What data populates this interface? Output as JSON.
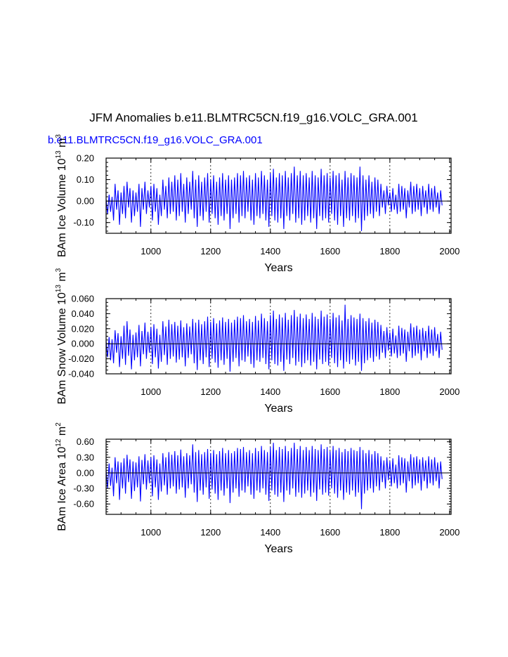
{
  "page": {
    "title": "JFM Anomalies b.e11.BLMTRC5CN.f19_g16.VOLC_GRA.001",
    "run_label": "b.e11.BLMTRC5CN.f19_g16.VOLC_GRA.001",
    "colors": {
      "series": "#0000ff",
      "run_label": "#0000ff",
      "axes": "#000000",
      "background": "#ffffff"
    }
  },
  "chart_data": [
    {
      "id": "ice-volume",
      "type": "line",
      "title": "",
      "xlabel": "Years",
      "ylabel": "BAm Ice Volume 10",
      "ylabel_exp": "13",
      "ylabel_unit": "m",
      "ylabel_unit_exp": "3",
      "xlim": [
        850,
        2005
      ],
      "ylim": [
        -0.15,
        0.2
      ],
      "xticks": [
        1000,
        1200,
        1400,
        1600,
        1800,
        2000
      ],
      "yticks": [
        -0.1,
        0.0,
        0.1,
        0.2
      ],
      "ytick_labels": [
        "-0.10",
        "0.00",
        "0.10",
        "0.20"
      ],
      "y_minor_step": 0.02,
      "x_minor_step": 50,
      "vgrid": [
        1000,
        1200,
        1400,
        1600,
        1800
      ],
      "zero_line": true,
      "series": [
        {
          "name": "BAm Ice Volume",
          "color": "#0000ff",
          "x_start": 850,
          "step": 5,
          "values": [
            0.01,
            -0.06,
            0.03,
            -0.05,
            0.02,
            -0.09,
            0.08,
            -0.04,
            0.05,
            -0.11,
            0.04,
            -0.06,
            0.07,
            -0.08,
            0.09,
            -0.03,
            0.06,
            -0.1,
            0.05,
            -0.07,
            0.04,
            -0.05,
            0.08,
            -0.12,
            0.06,
            -0.04,
            0.09,
            -0.06,
            0.05,
            -0.03,
            0.07,
            -0.09,
            0.08,
            -0.05,
            0.06,
            -0.11,
            0.03,
            -0.07,
            0.1,
            -0.04,
            0.07,
            -0.08,
            0.11,
            -0.06,
            0.09,
            -0.05,
            0.12,
            -0.09,
            0.1,
            -0.07,
            0.13,
            -0.05,
            0.08,
            -0.1,
            0.11,
            -0.06,
            0.09,
            -0.04,
            0.14,
            -0.08,
            0.1,
            -0.12,
            0.12,
            -0.07,
            0.09,
            -0.09,
            0.11,
            -0.05,
            0.13,
            -0.1,
            0.1,
            -0.06,
            0.12,
            -0.08,
            0.09,
            -0.11,
            0.11,
            -0.07,
            0.13,
            -0.09,
            0.1,
            -0.06,
            0.12,
            -0.13,
            0.1,
            -0.08,
            0.11,
            -0.06,
            0.13,
            -0.1,
            0.12,
            -0.07,
            0.14,
            -0.08,
            0.11,
            -0.05,
            0.12,
            -0.09,
            0.1,
            -0.11,
            0.13,
            -0.07,
            0.11,
            -0.08,
            0.14,
            -0.06,
            0.12,
            -0.09,
            0.1,
            -0.12,
            0.13,
            -0.07,
            0.15,
            -0.09,
            0.11,
            -0.1,
            0.13,
            -0.08,
            0.12,
            -0.13,
            0.14,
            -0.07,
            0.11,
            -0.09,
            0.13,
            -0.06,
            0.16,
            -0.1,
            0.12,
            -0.08,
            0.14,
            -0.11,
            0.12,
            -0.09,
            0.13,
            -0.07,
            0.11,
            -0.1,
            0.14,
            -0.08,
            0.12,
            -0.13,
            0.11,
            -0.07,
            0.15,
            -0.09,
            0.12,
            -0.08,
            0.13,
            -0.1,
            0.11,
            -0.06,
            0.14,
            -0.09,
            0.12,
            -0.11,
            0.13,
            -0.07,
            0.1,
            -0.12,
            0.14,
            -0.08,
            0.11,
            -0.09,
            0.13,
            -0.07,
            0.12,
            -0.1,
            0.11,
            -0.08,
            0.16,
            -0.14,
            0.12,
            -0.09,
            0.1,
            -0.07,
            0.12,
            -0.06,
            0.09,
            -0.08,
            0.11,
            -0.05,
            0.1,
            -0.07,
            0.08,
            -0.03,
            0.05,
            -0.06,
            0.07,
            -0.02,
            0.04,
            -0.05,
            0.06,
            -0.04,
            0.03,
            -0.06,
            0.08,
            -0.05,
            0.07,
            -0.04,
            0.06,
            -0.08,
            0.05,
            -0.03,
            0.09,
            -0.06,
            0.07,
            -0.05,
            0.08,
            -0.04,
            0.06,
            -0.07,
            0.07,
            -0.03,
            0.05,
            -0.06,
            0.08,
            -0.04,
            0.06,
            -0.05,
            0.07,
            -0.03,
            0.04,
            -0.06,
            0.05,
            -0.02
          ]
        }
      ]
    },
    {
      "id": "snow-volume",
      "type": "line",
      "title": "",
      "xlabel": "Years",
      "ylabel": "BAm Snow Volume 10",
      "ylabel_exp": "13",
      "ylabel_unit": "m",
      "ylabel_unit_exp": "3",
      "xlim": [
        850,
        2005
      ],
      "ylim": [
        -0.04,
        0.06
      ],
      "xticks": [
        1000,
        1200,
        1400,
        1600,
        1800,
        2000
      ],
      "yticks": [
        -0.04,
        -0.02,
        0.0,
        0.02,
        0.04,
        0.06
      ],
      "ytick_labels": [
        "-0.040",
        "-0.020",
        "0.000",
        "0.020",
        "0.040",
        "0.060"
      ],
      "y_minor_step": 0.005,
      "x_minor_step": 50,
      "vgrid": [
        1000,
        1200,
        1400,
        1600,
        1800
      ],
      "zero_line": true,
      "series": [
        {
          "name": "BAm Snow Volume",
          "color": "#0000ff",
          "x_start": 850,
          "step": 5,
          "values": [
            0.004,
            -0.018,
            0.009,
            -0.022,
            0.006,
            -0.026,
            0.018,
            -0.012,
            0.014,
            -0.031,
            0.01,
            -0.02,
            0.024,
            -0.028,
            0.03,
            -0.016,
            0.019,
            -0.034,
            0.012,
            -0.022,
            0.015,
            -0.018,
            0.025,
            -0.03,
            0.017,
            -0.014,
            0.028,
            -0.02,
            0.016,
            -0.012,
            0.022,
            -0.027,
            0.026,
            -0.018,
            0.02,
            -0.033,
            0.012,
            -0.024,
            0.03,
            -0.015,
            0.023,
            -0.028,
            0.032,
            -0.02,
            0.026,
            -0.017,
            0.029,
            -0.025,
            0.024,
            -0.021,
            0.031,
            -0.018,
            0.022,
            -0.03,
            0.027,
            -0.019,
            0.023,
            -0.014,
            0.033,
            -0.026,
            0.028,
            -0.035,
            0.032,
            -0.022,
            0.026,
            -0.027,
            0.03,
            -0.018,
            0.036,
            -0.031,
            0.029,
            -0.02,
            0.034,
            -0.025,
            0.027,
            -0.032,
            0.031,
            -0.022,
            0.035,
            -0.028,
            0.029,
            -0.02,
            0.033,
            -0.037,
            0.028,
            -0.024,
            0.032,
            -0.019,
            0.036,
            -0.03,
            0.034,
            -0.022,
            0.038,
            -0.024,
            0.03,
            -0.017,
            0.033,
            -0.027,
            0.029,
            -0.032,
            0.037,
            -0.022,
            0.031,
            -0.024,
            0.04,
            -0.019,
            0.034,
            -0.027,
            0.03,
            -0.034,
            0.038,
            -0.022,
            0.044,
            -0.027,
            0.033,
            -0.029,
            0.039,
            -0.024,
            0.035,
            -0.036,
            0.041,
            -0.021,
            0.032,
            -0.027,
            0.038,
            -0.019,
            0.045,
            -0.029,
            0.036,
            -0.024,
            0.04,
            -0.031,
            0.034,
            -0.026,
            0.039,
            -0.022,
            0.033,
            -0.029,
            0.041,
            -0.024,
            0.036,
            -0.034,
            0.033,
            -0.021,
            0.044,
            -0.027,
            0.036,
            -0.024,
            0.039,
            -0.029,
            0.033,
            -0.019,
            0.041,
            -0.026,
            0.035,
            -0.031,
            0.038,
            -0.022,
            0.031,
            -0.033,
            0.052,
            -0.024,
            0.033,
            -0.027,
            0.038,
            -0.021,
            0.035,
            -0.029,
            0.033,
            -0.024,
            0.04,
            -0.036,
            0.034,
            -0.026,
            0.03,
            -0.022,
            0.034,
            -0.019,
            0.028,
            -0.024,
            0.032,
            -0.017,
            0.029,
            -0.021,
            0.025,
            -0.012,
            0.017,
            -0.019,
            0.022,
            -0.009,
            0.015,
            -0.017,
            0.02,
            -0.013,
            0.011,
            -0.019,
            0.024,
            -0.016,
            0.021,
            -0.013,
            0.019,
            -0.024,
            0.016,
            -0.01,
            0.027,
            -0.019,
            0.022,
            -0.016,
            0.024,
            -0.013,
            0.019,
            -0.022,
            0.021,
            -0.01,
            0.017,
            -0.019,
            0.024,
            -0.013,
            0.019,
            -0.016,
            0.022,
            -0.01,
            0.013,
            -0.019,
            0.016,
            -0.008
          ]
        }
      ]
    },
    {
      "id": "ice-area",
      "type": "line",
      "title": "",
      "xlabel": "Years",
      "ylabel": "BAm Ice Area 10",
      "ylabel_exp": "12",
      "ylabel_unit": "m",
      "ylabel_unit_exp": "2",
      "xlim": [
        850,
        2005
      ],
      "ylim": [
        -0.8,
        0.65
      ],
      "xticks": [
        1000,
        1200,
        1400,
        1600,
        1800,
        2000
      ],
      "yticks": [
        -0.6,
        -0.3,
        0.0,
        0.3,
        0.6
      ],
      "ytick_labels": [
        "-0.60",
        "-0.30",
        "0.00",
        "0.30",
        "0.60"
      ],
      "y_minor_step": 0.05,
      "x_minor_step": 50,
      "vgrid": [
        1000,
        1200,
        1400,
        1600,
        1800
      ],
      "zero_line": true,
      "series": [
        {
          "name": "BAm Ice Area",
          "color": "#0000ff",
          "x_start": 850,
          "step": 5,
          "values": [
            0.05,
            -0.3,
            0.18,
            -0.25,
            0.1,
            -0.45,
            0.3,
            -0.2,
            0.22,
            -0.52,
            0.2,
            -0.3,
            0.28,
            -0.4,
            0.35,
            -0.18,
            0.26,
            -0.5,
            0.22,
            -0.35,
            0.2,
            -0.28,
            0.32,
            -0.55,
            0.25,
            -0.22,
            0.36,
            -0.32,
            0.24,
            -0.2,
            0.3,
            -0.45,
            0.34,
            -0.28,
            0.26,
            -0.52,
            0.18,
            -0.36,
            0.38,
            -0.24,
            0.3,
            -0.42,
            0.4,
            -0.3,
            0.35,
            -0.26,
            0.42,
            -0.4,
            0.34,
            -0.32,
            0.45,
            -0.28,
            0.32,
            -0.48,
            0.38,
            -0.3,
            0.34,
            -0.22,
            0.55,
            -0.38,
            0.4,
            -0.56,
            0.44,
            -0.34,
            0.36,
            -0.42,
            0.4,
            -0.28,
            0.46,
            -0.5,
            0.38,
            -0.32,
            0.44,
            -0.4,
            0.36,
            -0.52,
            0.42,
            -0.34,
            0.48,
            -0.44,
            0.38,
            -0.3,
            0.44,
            -0.58,
            0.38,
            -0.38,
            0.42,
            -0.3,
            0.48,
            -0.46,
            0.46,
            -0.34,
            0.5,
            -0.38,
            0.4,
            -0.26,
            0.44,
            -0.42,
            0.38,
            -0.5,
            0.48,
            -0.34,
            0.42,
            -0.38,
            0.52,
            -0.3,
            0.44,
            -0.42,
            0.4,
            -0.54,
            0.5,
            -0.34,
            0.58,
            -0.42,
            0.44,
            -0.46,
            0.5,
            -0.38,
            0.46,
            -0.56,
            0.52,
            -0.34,
            0.42,
            -0.42,
            0.48,
            -0.3,
            0.58,
            -0.46,
            0.46,
            -0.38,
            0.52,
            -0.48,
            0.44,
            -0.4,
            0.5,
            -0.34,
            0.44,
            -0.46,
            0.52,
            -0.38,
            0.46,
            -0.54,
            0.44,
            -0.32,
            0.55,
            -0.42,
            0.46,
            -0.38,
            0.5,
            -0.44,
            0.42,
            -0.3,
            0.52,
            -0.4,
            0.44,
            -0.48,
            0.48,
            -0.34,
            0.4,
            -0.52,
            0.46,
            -0.38,
            0.42,
            -0.42,
            0.48,
            -0.34,
            0.44,
            -0.46,
            0.42,
            -0.38,
            0.5,
            -0.7,
            0.44,
            -0.4,
            0.38,
            -0.34,
            0.44,
            -0.3,
            0.36,
            -0.38,
            0.42,
            -0.26,
            0.38,
            -0.34,
            0.32,
            -0.18,
            0.24,
            -0.3,
            0.3,
            -0.14,
            0.22,
            -0.26,
            0.28,
            -0.2,
            0.16,
            -0.3,
            0.34,
            -0.24,
            0.3,
            -0.2,
            0.28,
            -0.38,
            0.22,
            -0.16,
            0.36,
            -0.3,
            0.3,
            -0.24,
            0.32,
            -0.2,
            0.26,
            -0.34,
            0.3,
            -0.16,
            0.24,
            -0.3,
            0.32,
            -0.2,
            0.26,
            -0.24,
            0.3,
            -0.16,
            0.2,
            -0.3,
            0.22,
            -0.12
          ]
        }
      ]
    }
  ]
}
